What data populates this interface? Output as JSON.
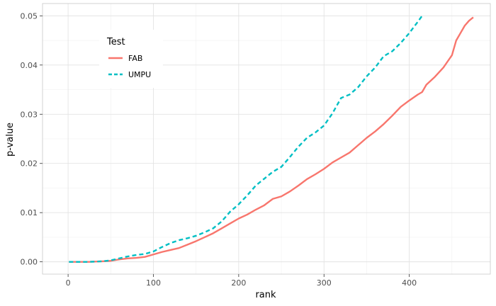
{
  "chart_data": {
    "type": "line",
    "xlabel": "rank",
    "ylabel": "p-value",
    "xlim": [
      -30,
      495
    ],
    "ylim": [
      -0.0025,
      0.0525
    ],
    "x_ticks": [
      0,
      100,
      200,
      300,
      400
    ],
    "y_ticks": [
      0.0,
      0.01,
      0.02,
      0.03,
      0.04,
      0.05
    ],
    "y_tick_labels": [
      "0.00",
      "0.01",
      "0.02",
      "0.03",
      "0.04",
      "0.05"
    ],
    "grid": true,
    "legend": {
      "title": "Test",
      "placement": "top-left"
    },
    "series": [
      {
        "name": "FAB",
        "color": "#F8766D",
        "dash": "solid",
        "points": [
          [
            1,
            0.0
          ],
          [
            25,
            0.0
          ],
          [
            40,
            0.0001
          ],
          [
            50,
            0.0002
          ],
          [
            60,
            0.0005
          ],
          [
            70,
            0.0007
          ],
          [
            80,
            0.0008
          ],
          [
            90,
            0.001
          ],
          [
            100,
            0.0015
          ],
          [
            110,
            0.002
          ],
          [
            120,
            0.0024
          ],
          [
            130,
            0.0028
          ],
          [
            140,
            0.0035
          ],
          [
            150,
            0.0042
          ],
          [
            160,
            0.005
          ],
          [
            170,
            0.0058
          ],
          [
            180,
            0.0068
          ],
          [
            190,
            0.0078
          ],
          [
            200,
            0.0088
          ],
          [
            210,
            0.0096
          ],
          [
            220,
            0.0106
          ],
          [
            230,
            0.0115
          ],
          [
            240,
            0.0128
          ],
          [
            250,
            0.0133
          ],
          [
            260,
            0.0143
          ],
          [
            270,
            0.0155
          ],
          [
            280,
            0.0168
          ],
          [
            290,
            0.0178
          ],
          [
            300,
            0.0189
          ],
          [
            310,
            0.0202
          ],
          [
            320,
            0.0212
          ],
          [
            330,
            0.0222
          ],
          [
            340,
            0.0237
          ],
          [
            350,
            0.0252
          ],
          [
            360,
            0.0265
          ],
          [
            370,
            0.028
          ],
          [
            380,
            0.0297
          ],
          [
            390,
            0.0315
          ],
          [
            400,
            0.0328
          ],
          [
            410,
            0.034
          ],
          [
            415,
            0.0345
          ],
          [
            420,
            0.036
          ],
          [
            430,
            0.0376
          ],
          [
            440,
            0.0395
          ],
          [
            450,
            0.042
          ],
          [
            455,
            0.045
          ],
          [
            460,
            0.0465
          ],
          [
            465,
            0.048
          ],
          [
            470,
            0.049
          ],
          [
            475,
            0.0497
          ]
        ]
      },
      {
        "name": "UMPU",
        "color": "#00BFC4",
        "dash": "dashed",
        "points": [
          [
            1,
            0.0
          ],
          [
            25,
            0.0
          ],
          [
            40,
            0.0001
          ],
          [
            50,
            0.0003
          ],
          [
            60,
            0.0007
          ],
          [
            70,
            0.0011
          ],
          [
            80,
            0.0014
          ],
          [
            90,
            0.0016
          ],
          [
            100,
            0.0021
          ],
          [
            110,
            0.003
          ],
          [
            120,
            0.0038
          ],
          [
            130,
            0.0044
          ],
          [
            140,
            0.0048
          ],
          [
            150,
            0.0053
          ],
          [
            160,
            0.006
          ],
          [
            170,
            0.0068
          ],
          [
            180,
            0.0082
          ],
          [
            190,
            0.0102
          ],
          [
            200,
            0.0117
          ],
          [
            210,
            0.0135
          ],
          [
            220,
            0.0155
          ],
          [
            230,
            0.0169
          ],
          [
            240,
            0.0183
          ],
          [
            250,
            0.0193
          ],
          [
            260,
            0.0213
          ],
          [
            270,
            0.0234
          ],
          [
            280,
            0.0252
          ],
          [
            290,
            0.0263
          ],
          [
            300,
            0.0277
          ],
          [
            310,
            0.0302
          ],
          [
            320,
            0.0333
          ],
          [
            330,
            0.034
          ],
          [
            340,
            0.0355
          ],
          [
            350,
            0.0377
          ],
          [
            360,
            0.0395
          ],
          [
            370,
            0.0418
          ],
          [
            380,
            0.0428
          ],
          [
            390,
            0.0445
          ],
          [
            400,
            0.0465
          ],
          [
            410,
            0.0488
          ],
          [
            415,
            0.05
          ]
        ]
      }
    ]
  }
}
